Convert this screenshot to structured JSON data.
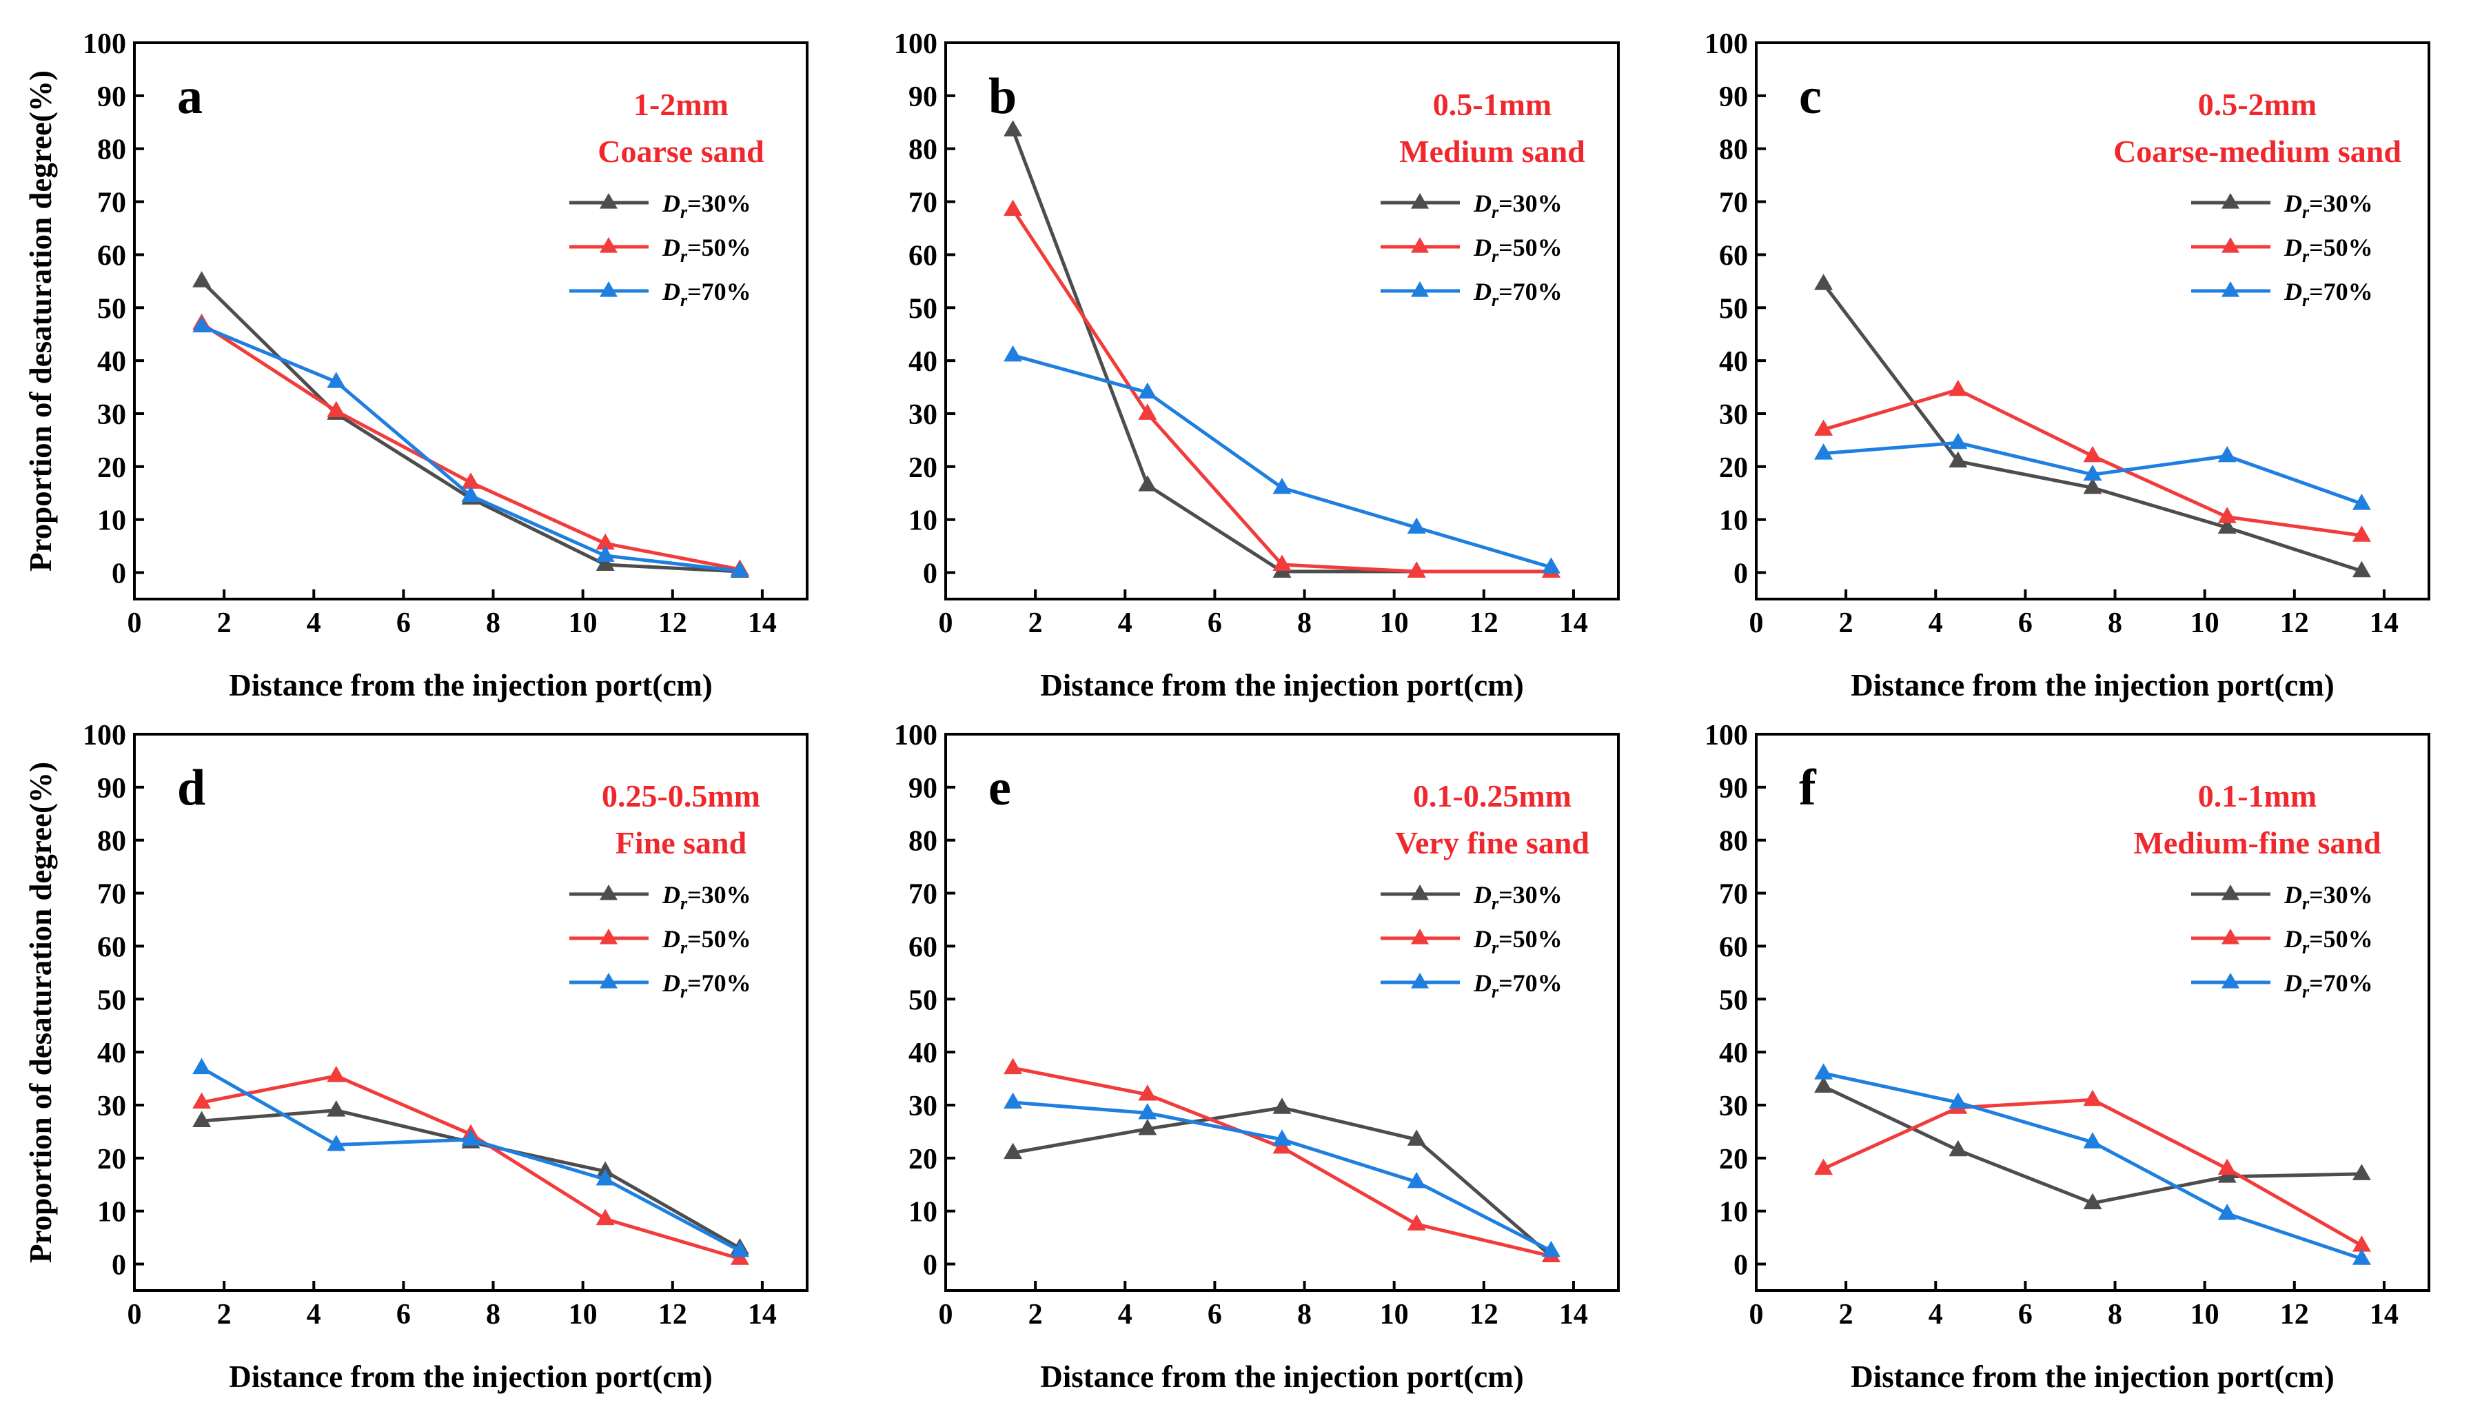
{
  "figure": {
    "colors": {
      "Dr=30%": "#4d4d4d",
      "Dr=50%": "#f23b3b",
      "Dr=70%": "#1e7fe0"
    }
  },
  "chart_data": [
    {
      "type": "line",
      "panel": "a",
      "annotation": [
        "1-2mm",
        "Coarse sand"
      ],
      "title": "",
      "xlabel": "Distance from the injection port(cm)",
      "ylabel": "Proportion of desaturation degree(%)",
      "xlim": [
        0,
        15
      ],
      "ylim": [
        -5,
        100
      ],
      "xticks": [
        0,
        2,
        4,
        6,
        8,
        10,
        12,
        14
      ],
      "yticks": [
        0,
        10,
        20,
        30,
        40,
        50,
        60,
        70,
        80,
        90,
        100
      ],
      "x": [
        1.5,
        4.5,
        7.5,
        10.5,
        13.5
      ],
      "series": [
        {
          "name": "Dr=30%",
          "legend": {
            "var": "D",
            "sub": "r",
            "rest": "=30%"
          },
          "values": [
            55,
            30,
            14,
            1.5,
            0.2
          ]
        },
        {
          "name": "Dr=50%",
          "legend": {
            "var": "D",
            "sub": "r",
            "rest": "=50%"
          },
          "values": [
            47,
            30.5,
            17,
            5.5,
            0.6
          ]
        },
        {
          "name": "Dr=70%",
          "legend": {
            "var": "D",
            "sub": "r",
            "rest": "=70%"
          },
          "values": [
            46.5,
            36,
            14.5,
            3.2,
            0.3
          ]
        }
      ]
    },
    {
      "type": "line",
      "panel": "b",
      "annotation": [
        "0.5-1mm",
        "Medium sand"
      ],
      "title": "",
      "xlabel": "Distance from the injection port(cm)",
      "ylabel": "",
      "xlim": [
        0,
        15
      ],
      "ylim": [
        -5,
        100
      ],
      "xticks": [
        0,
        2,
        4,
        6,
        8,
        10,
        12,
        14
      ],
      "yticks": [
        0,
        10,
        20,
        30,
        40,
        50,
        60,
        70,
        80,
        90,
        100
      ],
      "x": [
        1.5,
        4.5,
        7.5,
        10.5,
        13.5
      ],
      "series": [
        {
          "name": "Dr=30%",
          "legend": {
            "var": "D",
            "sub": "r",
            "rest": "=30%"
          },
          "values": [
            83.5,
            16.5,
            0.2,
            0.2,
            0.2
          ]
        },
        {
          "name": "Dr=50%",
          "legend": {
            "var": "D",
            "sub": "r",
            "rest": "=50%"
          },
          "values": [
            68.5,
            30,
            1.5,
            0.2,
            0.2
          ]
        },
        {
          "name": "Dr=70%",
          "legend": {
            "var": "D",
            "sub": "r",
            "rest": "=70%"
          },
          "values": [
            41,
            34,
            16,
            8.5,
            1
          ]
        }
      ]
    },
    {
      "type": "line",
      "panel": "c",
      "annotation": [
        "0.5-2mm",
        "Coarse-medium sand"
      ],
      "title": "",
      "xlabel": "Distance from the injection port(cm)",
      "ylabel": "",
      "xlim": [
        0,
        15
      ],
      "ylim": [
        -5,
        100
      ],
      "xticks": [
        0,
        2,
        4,
        6,
        8,
        10,
        12,
        14
      ],
      "yticks": [
        0,
        10,
        20,
        30,
        40,
        50,
        60,
        70,
        80,
        90,
        100
      ],
      "x": [
        1.5,
        4.5,
        7.5,
        10.5,
        13.5
      ],
      "series": [
        {
          "name": "Dr=30%",
          "legend": {
            "var": "D",
            "sub": "r",
            "rest": "=30%"
          },
          "values": [
            54.5,
            21,
            16,
            8.5,
            0.3
          ]
        },
        {
          "name": "Dr=50%",
          "legend": {
            "var": "D",
            "sub": "r",
            "rest": "=50%"
          },
          "values": [
            27,
            34.5,
            22,
            10.5,
            7
          ]
        },
        {
          "name": "Dr=70%",
          "legend": {
            "var": "D",
            "sub": "r",
            "rest": "=70%"
          },
          "values": [
            22.5,
            24.5,
            18.5,
            22,
            13
          ]
        }
      ]
    },
    {
      "type": "line",
      "panel": "d",
      "annotation": [
        "0.25-0.5mm",
        "Fine sand"
      ],
      "title": "",
      "xlabel": "Distance from the injection port(cm)",
      "ylabel": "Proportion of desaturation degree(%)",
      "xlim": [
        0,
        15
      ],
      "ylim": [
        -5,
        100
      ],
      "xticks": [
        0,
        2,
        4,
        6,
        8,
        10,
        12,
        14
      ],
      "yticks": [
        0,
        10,
        20,
        30,
        40,
        50,
        60,
        70,
        80,
        90,
        100
      ],
      "x": [
        1.5,
        4.5,
        7.5,
        10.5,
        13.5
      ],
      "series": [
        {
          "name": "Dr=30%",
          "legend": {
            "var": "D",
            "sub": "r",
            "rest": "=30%"
          },
          "values": [
            27,
            29,
            23,
            17.5,
            3
          ]
        },
        {
          "name": "Dr=50%",
          "legend": {
            "var": "D",
            "sub": "r",
            "rest": "=50%"
          },
          "values": [
            30.5,
            35.5,
            24.5,
            8.5,
            1
          ]
        },
        {
          "name": "Dr=70%",
          "legend": {
            "var": "D",
            "sub": "r",
            "rest": "=70%"
          },
          "values": [
            37,
            22.5,
            23.5,
            16,
            2.5
          ]
        }
      ]
    },
    {
      "type": "line",
      "panel": "e",
      "annotation": [
        "0.1-0.25mm",
        "Very fine sand"
      ],
      "title": "",
      "xlabel": "Distance from the injection port(cm)",
      "ylabel": "",
      "xlim": [
        0,
        15
      ],
      "ylim": [
        -5,
        100
      ],
      "xticks": [
        0,
        2,
        4,
        6,
        8,
        10,
        12,
        14
      ],
      "yticks": [
        0,
        10,
        20,
        30,
        40,
        50,
        60,
        70,
        80,
        90,
        100
      ],
      "x": [
        1.5,
        4.5,
        7.5,
        10.5,
        13.5
      ],
      "series": [
        {
          "name": "Dr=30%",
          "legend": {
            "var": "D",
            "sub": "r",
            "rest": "=30%"
          },
          "values": [
            21,
            25.5,
            29.5,
            23.5,
            1.5
          ]
        },
        {
          "name": "Dr=50%",
          "legend": {
            "var": "D",
            "sub": "r",
            "rest": "=50%"
          },
          "values": [
            37,
            32,
            22,
            7.5,
            1.5
          ]
        },
        {
          "name": "Dr=70%",
          "legend": {
            "var": "D",
            "sub": "r",
            "rest": "=70%"
          },
          "values": [
            30.5,
            28.5,
            23.5,
            15.5,
            2.5
          ]
        }
      ]
    },
    {
      "type": "line",
      "panel": "f",
      "annotation": [
        "0.1-1mm",
        "Medium-fine sand"
      ],
      "title": "",
      "xlabel": "Distance from the injection port(cm)",
      "ylabel": "",
      "xlim": [
        0,
        15
      ],
      "ylim": [
        -5,
        100
      ],
      "xticks": [
        0,
        2,
        4,
        6,
        8,
        10,
        12,
        14
      ],
      "yticks": [
        0,
        10,
        20,
        30,
        40,
        50,
        60,
        70,
        80,
        90,
        100
      ],
      "x": [
        1.5,
        4.5,
        7.5,
        10.5,
        13.5
      ],
      "series": [
        {
          "name": "Dr=30%",
          "legend": {
            "var": "D",
            "sub": "r",
            "rest": "=30%"
          },
          "values": [
            33.5,
            21.5,
            11.5,
            16.5,
            17
          ]
        },
        {
          "name": "Dr=50%",
          "legend": {
            "var": "D",
            "sub": "r",
            "rest": "=50%"
          },
          "values": [
            18,
            29.5,
            31,
            18,
            3.5
          ]
        },
        {
          "name": "Dr=70%",
          "legend": {
            "var": "D",
            "sub": "r",
            "rest": "=70%"
          },
          "values": [
            36,
            30.5,
            23,
            9.5,
            1
          ]
        }
      ]
    }
  ]
}
